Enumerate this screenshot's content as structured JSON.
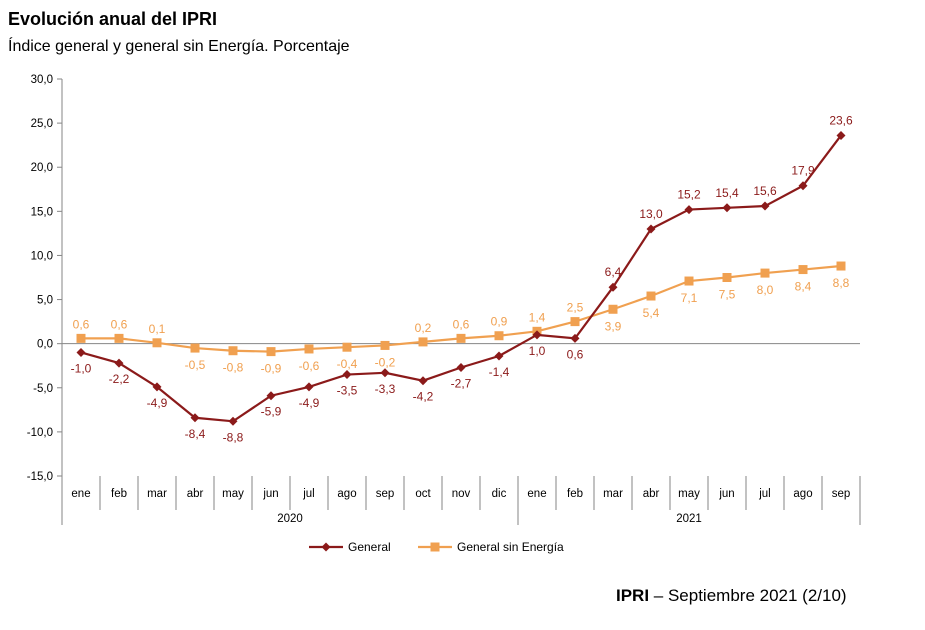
{
  "header": {
    "title": "Evolución anual del IPRI",
    "subtitle": "Índice general y general sin Energía. Porcentaje"
  },
  "footer": {
    "bold": "IPRI",
    "rest": " – Septiembre 2021 (2/10)"
  },
  "chart_data": {
    "type": "line",
    "title": "Evolución anual del IPRI",
    "subtitle": "Índice general y general sin Energía. Porcentaje",
    "xlabel": "",
    "ylabel": "",
    "ylim": [
      -15,
      30
    ],
    "yticks": [
      -15,
      -10,
      -5,
      0,
      5,
      10,
      15,
      20,
      25,
      30
    ],
    "ytick_labels": [
      "-15,0",
      "-10,0",
      "-5,0",
      "0,0",
      "5,0",
      "10,0",
      "15,0",
      "20,0",
      "25,0",
      "30,0"
    ],
    "categories": [
      "ene",
      "feb",
      "mar",
      "abr",
      "may",
      "jun",
      "jul",
      "ago",
      "sep",
      "oct",
      "nov",
      "dic",
      "ene",
      "feb",
      "mar",
      "abr",
      "may",
      "jun",
      "jul",
      "ago",
      "sep"
    ],
    "year_groups": [
      {
        "label": "2020",
        "count": 12
      },
      {
        "label": "2021",
        "count": 9
      }
    ],
    "series": [
      {
        "name": "General",
        "color": "#8b1a1a",
        "marker": "diamond",
        "values": [
          -1.0,
          -2.2,
          -4.9,
          -8.4,
          -8.8,
          -5.9,
          -4.9,
          -3.5,
          -3.3,
          -4.2,
          -2.7,
          -1.4,
          1.0,
          0.6,
          6.4,
          13.0,
          15.2,
          15.4,
          15.6,
          17.9,
          23.6
        ],
        "labels": [
          "-1,0",
          "-2,2",
          "-4,9",
          "-8,4",
          "-8,8",
          "-5,9",
          "-4,9",
          "-3,5",
          "-3,3",
          "-4,2",
          "-2,7",
          "-1,4",
          "1,0",
          "0,6",
          "6,4",
          "13,0",
          "15,2",
          "15,4",
          "15,6",
          "17,9",
          "23,6"
        ]
      },
      {
        "name": "General sin Energía",
        "color": "#f0a050",
        "marker": "square",
        "values": [
          0.6,
          0.6,
          0.1,
          -0.5,
          -0.8,
          -0.9,
          -0.6,
          -0.4,
          -0.2,
          0.2,
          0.6,
          0.9,
          1.4,
          2.5,
          3.9,
          5.4,
          7.1,
          7.5,
          8.0,
          8.4,
          8.8
        ],
        "labels": [
          "0,6",
          "0,6",
          "0,1",
          "-0,5",
          "-0,8",
          "-0,9",
          "-0,6",
          "-0,4",
          "-0,2",
          "0,2",
          "0,6",
          "0,9",
          "1,4",
          "2,5",
          "3,9",
          "5,4",
          "7,1",
          "7,5",
          "8,0",
          "8,4",
          "8,8"
        ]
      }
    ],
    "legend": "bottom-center",
    "grid": false
  }
}
